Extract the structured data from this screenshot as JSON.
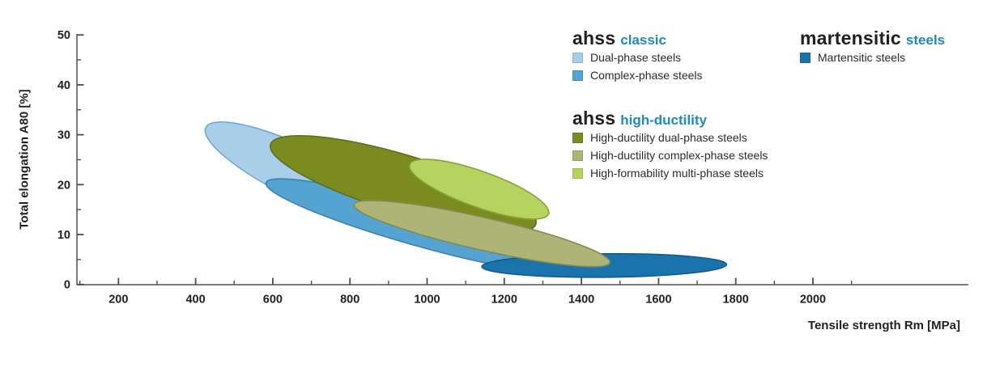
{
  "chart_data": {
    "type": "area",
    "title": "",
    "xlabel": "Tensile strength Rm [MPa]",
    "ylabel": "Total elongation A80 [%]",
    "xlim": [
      100,
      2400
    ],
    "ylim": [
      0,
      50
    ],
    "grid": false,
    "x_major_ticks": [
      200,
      400,
      600,
      800,
      1000,
      1200,
      1400,
      1600,
      1800,
      2000
    ],
    "x_minor_ticks": [
      100,
      300,
      500,
      700,
      900,
      1100,
      1300,
      1500,
      1700,
      1900,
      2100
    ],
    "y_major_ticks": [
      0,
      10,
      20,
      30,
      40,
      50
    ],
    "y_minor_ticks": [
      5,
      15,
      25,
      35,
      45
    ],
    "accent_color": "#1e88c7",
    "axis_color": "#7c7c7c",
    "regions": [
      {
        "id": "dual-phase",
        "label": "Dual-phase steels",
        "group": "ahss classic",
        "fill": "#a9cee9",
        "stroke": "#74a9cf",
        "rm_range_mpa": [
          420,
          930
        ],
        "elongation_range_pct": [
          13,
          32
        ],
        "ellipse": {
          "cx_mpa": 674,
          "cy_pct": 22.2,
          "rx_mpa": 275,
          "ry_pct": 5.2,
          "rot_deg": 25.8
        }
      },
      {
        "id": "complex-phase",
        "label": "Complex-phase steels",
        "group": "ahss classic",
        "fill": "#54a3d1",
        "stroke": "#3d83ac",
        "rm_range_mpa": [
          580,
          1360
        ],
        "elongation_range_pct": [
          2.5,
          21
        ],
        "ellipse": {
          "cx_mpa": 972,
          "cy_pct": 11.8,
          "rx_mpa": 405,
          "ry_pct": 3.9,
          "rot_deg": 15.9
        }
      },
      {
        "id": "martensitic",
        "label": "Martensitic steels",
        "group": "martensitic steels",
        "fill": "#1b73ac",
        "stroke": "#135a8b",
        "rm_range_mpa": [
          1140,
          1780
        ],
        "elongation_range_pct": [
          1.5,
          6
        ],
        "ellipse": {
          "cx_mpa": 1459,
          "cy_pct": 3.8,
          "rx_mpa": 317,
          "ry_pct": 2.35,
          "rot_deg": -0.5
        }
      },
      {
        "id": "high-ductility-dual-phase",
        "label": "High-ductility dual-phase steels",
        "group": "ahss high-ductility",
        "fill": "#7c8b20",
        "stroke": "#606d1d",
        "rm_range_mpa": [
          595,
          1280
        ],
        "elongation_range_pct": [
          10,
          30
        ],
        "ellipse": {
          "cx_mpa": 938,
          "cy_pct": 20.1,
          "rx_mpa": 359,
          "ry_pct": 5.8,
          "rot_deg": 16.7
        }
      },
      {
        "id": "high-ductility-complex-phase",
        "label": "High-ductility complex-phase steels",
        "group": "ahss high-ductility",
        "fill": "#aeb475",
        "stroke": "#808b54",
        "rm_range_mpa": [
          810,
          1475
        ],
        "elongation_range_pct": [
          3.5,
          17
        ],
        "ellipse": {
          "cx_mpa": 1142,
          "cy_pct": 10.2,
          "rx_mpa": 340,
          "ry_pct": 3.25,
          "rot_deg": 12.8
        }
      },
      {
        "id": "high-formability-multi-phase",
        "label": "High-formability multi-phase steels",
        "group": "ahss high-ductility",
        "fill": "#b6d35f",
        "stroke": "#84a33d",
        "rm_range_mpa": [
          955,
          1315
        ],
        "elongation_range_pct": [
          13,
          25
        ],
        "ellipse": {
          "cx_mpa": 1135,
          "cy_pct": 19.1,
          "rx_mpa": 191,
          "ry_pct": 3.6,
          "rot_deg": 19.6
        }
      }
    ],
    "legend_groups": [
      {
        "title_main": "ahss",
        "title_accent": "classic",
        "items": [
          {
            "label": "Dual-phase steels",
            "color": "#a9cee9"
          },
          {
            "label": "Complex-phase steels",
            "color": "#54a3d1"
          }
        ]
      },
      {
        "title_main": "martensitic",
        "title_accent": "steels",
        "items": [
          {
            "label": "Martensitic steels",
            "color": "#1b73ac"
          }
        ]
      },
      {
        "title_main": "ahss",
        "title_accent": "high-ductility",
        "items": [
          {
            "label": "High-ductility dual-phase steels",
            "color": "#7c8b20"
          },
          {
            "label": "High-ductility complex-phase steels",
            "color": "#aeb475"
          },
          {
            "label": "High-formability multi-phase steels",
            "color": "#b6d35f"
          }
        ]
      }
    ]
  }
}
